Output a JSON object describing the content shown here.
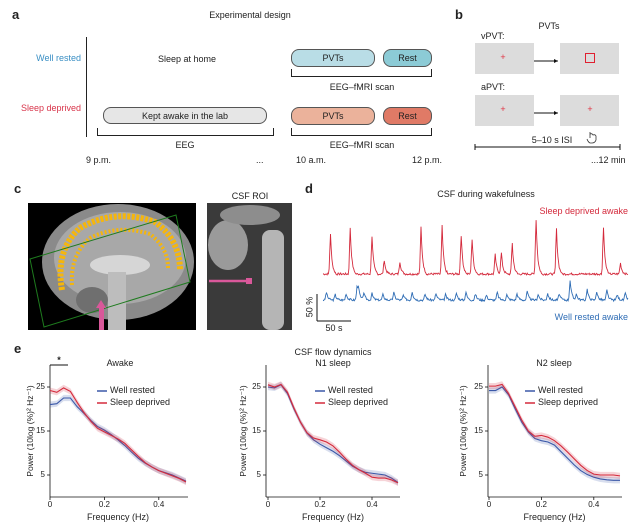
{
  "panel_a": {
    "label": "a",
    "title": "Experimental design",
    "groups": {
      "well_rested": "Well rested",
      "sleep_deprived": "Sleep deprived"
    },
    "sleep_at_home": "Sleep at home",
    "kept_awake": "Kept awake in the lab",
    "pvts": "PVTs",
    "rest": "Rest",
    "scan_label": "EEG–fMRI scan",
    "eeg_label": "EEG",
    "times": [
      "9 p.m.",
      "...",
      "10 a.m.",
      "12 p.m."
    ],
    "colors": {
      "wr_pvt": "#b9dde6",
      "wr_rest": "#8ccbd6",
      "sd_pvt": "#ebb29b",
      "sd_rest": "#e07a66",
      "awake": "#e6e6e6",
      "wr_text": "#3a8fc4",
      "sd_text": "#d8344a"
    }
  },
  "panel_b": {
    "label": "b",
    "title": "PVTs",
    "vpvt": "vPVT:",
    "apvt": "aPVT:",
    "fixation": "+",
    "isi": "5–10 s ISI",
    "duration": "...12 min"
  },
  "panel_c": {
    "label": "c",
    "roi_title": "CSF ROI"
  },
  "panel_d": {
    "label": "d",
    "title": "CSF during wakefulness",
    "sd_label": "Sleep deprived awake",
    "wr_label": "Well rested awake",
    "scale_y": "50 %",
    "scale_x": "50 s"
  },
  "panel_e": {
    "label": "e",
    "title": "CSF flow dynamics",
    "significance": "*"
  },
  "chart_data": [
    {
      "type": "line",
      "title": "Awake",
      "xlabel": "Frequency (Hz)",
      "ylabel": "Power (10log (%)² Hz⁻¹)",
      "xlim": [
        0,
        0.5
      ],
      "ylim": [
        0,
        30
      ],
      "xticks": [
        "0",
        "0.2",
        "0.4"
      ],
      "yticks": [
        "5",
        "15",
        "25"
      ],
      "legend": [
        "Well rested",
        "Sleep deprived"
      ],
      "legend_position": "top-right",
      "x": [
        0,
        0.025,
        0.05,
        0.075,
        0.1,
        0.125,
        0.15,
        0.175,
        0.2,
        0.225,
        0.25,
        0.275,
        0.3,
        0.325,
        0.35,
        0.375,
        0.4,
        0.425,
        0.45,
        0.475,
        0.5
      ],
      "series": [
        {
          "name": "Well rested",
          "color": "#3b58a8",
          "values": [
            21,
            21.2,
            22.5,
            22.5,
            20.5,
            19,
            17.4,
            16,
            15.2,
            14.2,
            13,
            11.7,
            10.2,
            8.8,
            7.7,
            6.8,
            6,
            5.5,
            5,
            4.3,
            3.6
          ]
        },
        {
          "name": "Sleep deprived",
          "color": "#d42a3c",
          "values": [
            24.2,
            23.8,
            24.8,
            24,
            21.5,
            19.2,
            17.2,
            15.6,
            14.8,
            14,
            13.2,
            12.2,
            10.7,
            9.2,
            7.8,
            6.8,
            6,
            5.4,
            4.8,
            4.2,
            3.4
          ]
        }
      ]
    },
    {
      "type": "line",
      "title": "N1 sleep",
      "xlabel": "Frequency (Hz)",
      "ylabel": "Power (10log (%)² Hz⁻¹)",
      "xlim": [
        0,
        0.5
      ],
      "ylim": [
        0,
        30
      ],
      "xticks": [
        "0",
        "0.2",
        "0.4"
      ],
      "yticks": [
        "5",
        "15",
        "25"
      ],
      "legend": [
        "Well rested",
        "Sleep deprived"
      ],
      "legend_position": "top-right",
      "x": [
        0,
        0.025,
        0.05,
        0.075,
        0.1,
        0.125,
        0.15,
        0.175,
        0.2,
        0.225,
        0.25,
        0.275,
        0.3,
        0.325,
        0.35,
        0.375,
        0.4,
        0.425,
        0.45,
        0.475,
        0.5
      ],
      "series": [
        {
          "name": "Well rested",
          "color": "#3b58a8",
          "values": [
            25,
            24.8,
            25.5,
            23.5,
            20,
            17,
            14.5,
            13,
            12,
            11.2,
            10.4,
            9.4,
            8.2,
            7,
            6.2,
            5.6,
            5.4,
            5.2,
            5,
            4.3,
            3.3
          ]
        },
        {
          "name": "Sleep deprived",
          "color": "#d42a3c",
          "values": [
            25.5,
            25,
            25.6,
            23.8,
            20.2,
            17,
            14.6,
            13.4,
            13,
            12.5,
            11.6,
            10.2,
            8.6,
            7.2,
            6.2,
            5.4,
            4.5,
            4.3,
            4.3,
            3.9,
            3.2
          ]
        }
      ]
    },
    {
      "type": "line",
      "title": "N2 sleep",
      "xlabel": "Frequency (Hz)",
      "ylabel": "Power (10log (%)² Hz⁻¹)",
      "xlim": [
        0,
        0.5
      ],
      "ylim": [
        0,
        30
      ],
      "xticks": [
        "0",
        "0.2",
        "0.4"
      ],
      "yticks": [
        "5",
        "15",
        "25"
      ],
      "legend": [
        "Well rested",
        "Sleep deprived"
      ],
      "legend_position": "top-right",
      "x": [
        0,
        0.025,
        0.05,
        0.075,
        0.1,
        0.125,
        0.15,
        0.175,
        0.2,
        0.225,
        0.25,
        0.275,
        0.3,
        0.325,
        0.35,
        0.375,
        0.4,
        0.425,
        0.45,
        0.475,
        0.5
      ],
      "series": [
        {
          "name": "Well rested",
          "color": "#3b58a8",
          "values": [
            24.2,
            24.2,
            25,
            23.2,
            20,
            17,
            14.8,
            13.3,
            12.8,
            12.5,
            11.8,
            10.3,
            8.8,
            7.3,
            6,
            5.1,
            4.5,
            4.1,
            3.9,
            3.8,
            3.8
          ]
        },
        {
          "name": "Sleep deprived",
          "color": "#d42a3c",
          "values": [
            25.2,
            25.2,
            25.6,
            23.5,
            20.5,
            17.5,
            15,
            13.8,
            14,
            13.6,
            12.8,
            11.6,
            10.2,
            8.7,
            7.2,
            6,
            5.2,
            5,
            5,
            5,
            4.8
          ]
        }
      ]
    },
    {
      "type": "line",
      "title": "CSF during wakefulness",
      "duration_s": 448,
      "series": [
        {
          "name": "Sleep deprived awake",
          "color": "#d42a3c",
          "peak_times_s": [
            11,
            40,
            72,
            90,
            113,
            144,
            175,
            203,
            219,
            253,
            262,
            278,
            313,
            343,
            412,
            437
          ],
          "peak_amplitudes_pct": [
            73,
            86,
            70,
            26,
            23,
            87,
            89,
            72,
            64,
            36,
            39,
            58,
            101,
            83,
            86,
            20
          ]
        },
        {
          "name": "Well rested awake",
          "color": "#2f6db5",
          "peak_times_s": [
            5,
            18,
            34,
            50,
            52,
            60,
            72,
            88,
            104,
            118,
            131,
            150,
            166,
            180,
            196,
            210,
            224,
            240,
            256,
            270,
            285,
            300,
            316,
            330,
            347,
            363,
            372,
            388,
            402,
            417,
            432,
            444
          ],
          "peak_amplitudes_pct": [
            14,
            10,
            12,
            22,
            18,
            14,
            12,
            10,
            14,
            9,
            16,
            11,
            12,
            10,
            13,
            15,
            11,
            9,
            14,
            10,
            12,
            16,
            11,
            13,
            12,
            37,
            12,
            20,
            16,
            18,
            10,
            12
          ]
        }
      ]
    }
  ]
}
